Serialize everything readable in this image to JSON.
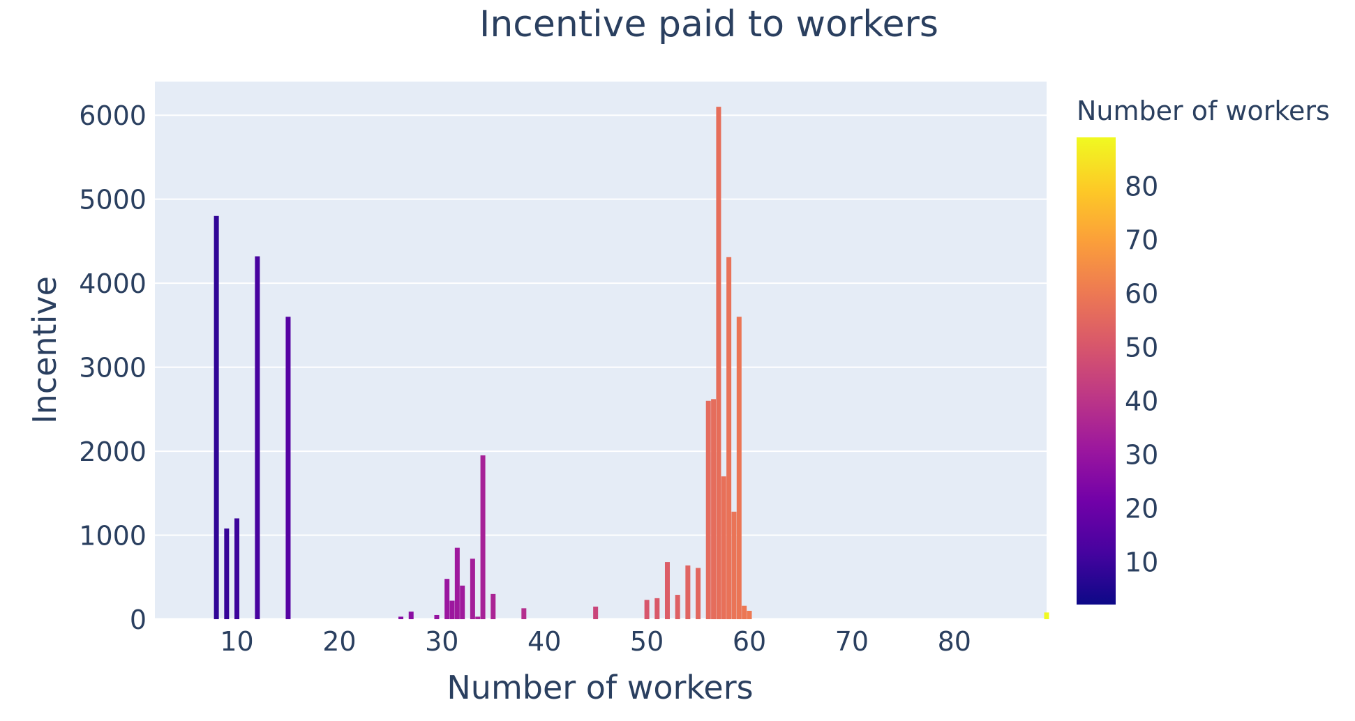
{
  "chart_data": {
    "type": "bar",
    "title": "Incentive paid to workers",
    "xlabel": "Number of workers",
    "ylabel": "Incentive",
    "xlim": [
      2,
      89
    ],
    "ylim": [
      0,
      6400
    ],
    "x_ticks": [
      "10",
      "20",
      "30",
      "40",
      "50",
      "60",
      "70",
      "80"
    ],
    "y_ticks": [
      "0",
      "1000",
      "2000",
      "3000",
      "4000",
      "5000",
      "6000"
    ],
    "grid": true,
    "colorbar": {
      "title": "Number of workers",
      "range": [
        2,
        89
      ],
      "ticks": [
        "10",
        "20",
        "30",
        "40",
        "50",
        "60",
        "70",
        "80"
      ],
      "colorscale": [
        "#0d0887",
        "#46039f",
        "#7201a8",
        "#9c179e",
        "#bd3786",
        "#d8576b",
        "#ed7953",
        "#fb9f3a",
        "#fdca26",
        "#f0f921"
      ]
    },
    "x": [
      8,
      9,
      10,
      12,
      15,
      26,
      27,
      29.5,
      30.5,
      31,
      31.5,
      32,
      33,
      33.5,
      34,
      35,
      38,
      45,
      50,
      51,
      52,
      53,
      54,
      55,
      56,
      56.5,
      57,
      57.5,
      58,
      58.5,
      59,
      59.5,
      60,
      89
    ],
    "values": [
      4800,
      1080,
      1200,
      4320,
      3600,
      30,
      90,
      50,
      480,
      220,
      850,
      400,
      720,
      30,
      1950,
      300,
      130,
      150,
      230,
      250,
      680,
      290,
      640,
      610,
      2600,
      2620,
      6100,
      1700,
      4310,
      1280,
      3600,
      160,
      100,
      80
    ]
  }
}
